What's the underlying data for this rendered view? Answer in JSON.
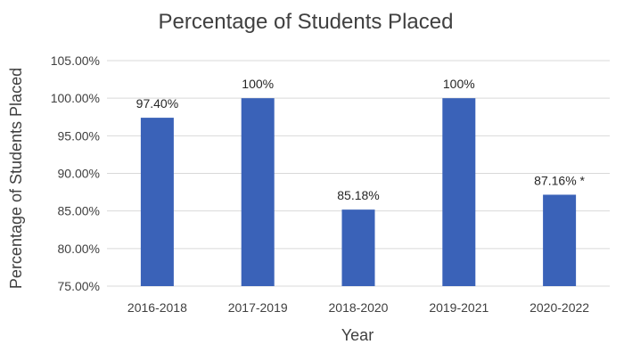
{
  "chart_data": {
    "type": "bar",
    "title": "Percentage of Students Placed",
    "xlabel": "Year",
    "ylabel": "Percentage of Students Placed",
    "categories": [
      "2016-2018",
      "2017-2019",
      "2018-2020",
      "2019-2021",
      "2020-2022"
    ],
    "values": [
      97.4,
      100,
      85.18,
      100,
      87.16
    ],
    "data_labels": [
      "97.40%",
      "100%",
      "85.18%",
      "100%",
      "87.16% *"
    ],
    "ylim": [
      75,
      105
    ],
    "yticks": [
      75,
      80,
      85,
      90,
      95,
      100,
      105
    ],
    "ytick_labels": [
      "75.00%",
      "80.00%",
      "85.00%",
      "90.00%",
      "95.00%",
      "100.00%",
      "105.00%"
    ],
    "grid": true,
    "legend": "none",
    "bar_color": "#3a62b8"
  }
}
